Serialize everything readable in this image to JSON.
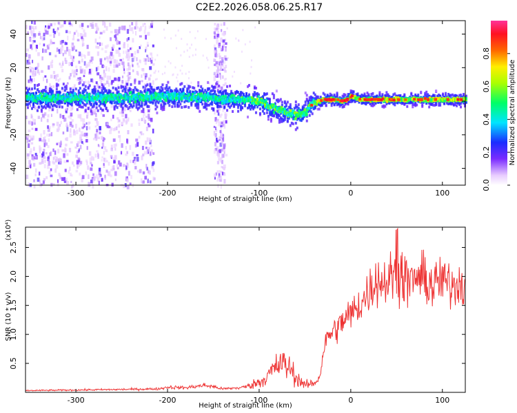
{
  "title": "C2E2.2026.058.06.25.R17",
  "chart_data": [
    {
      "type": "heatmap",
      "name": "spectrogram",
      "xlabel": "Height of straight line (km)",
      "ylabel": "Frequency (Hz)",
      "xlim": [
        -355,
        125
      ],
      "ylim": [
        -50,
        48
      ],
      "xticks": [
        -300,
        -200,
        -100,
        0,
        100
      ],
      "yticks": [
        -40,
        -20,
        0,
        20,
        40
      ],
      "colorbar": {
        "label": "Normalized spectral amplitude",
        "range": [
          0,
          1
        ],
        "ticks": [
          0.0,
          0.2,
          0.4,
          0.6,
          0.8
        ]
      },
      "ridge": {
        "x": [
          -355,
          -300,
          -250,
          -200,
          -150,
          -120,
          -100,
          -90,
          -80,
          -70,
          -60,
          -55,
          -50,
          -45,
          -40,
          -35,
          -30,
          -25,
          -20,
          -10,
          -5,
          0,
          5,
          10,
          20,
          40,
          60,
          80,
          100,
          125
        ],
        "y": [
          2,
          2,
          2,
          3,
          2,
          1,
          0,
          -3,
          -5,
          -7,
          -8,
          -8,
          -6,
          -3,
          -1,
          0,
          1,
          1,
          1,
          0,
          1,
          3,
          2,
          1,
          1,
          1,
          1,
          1,
          1,
          1
        ]
      },
      "noise_regions_x": [
        [
          -355,
          -215
        ],
        [
          -150,
          -137
        ]
      ]
    },
    {
      "type": "line",
      "name": "snr",
      "xlabel": "Height of straight line (km)",
      "ylabel": "SNR (10 * v/v)",
      "y_scale_label": "(x10⁴)",
      "xlim": [
        -355,
        125
      ],
      "ylim": [
        0,
        2.85
      ],
      "xticks": [
        -300,
        -200,
        -100,
        0,
        100
      ],
      "yticks": [
        0.5,
        1.0,
        1.5,
        2.0,
        2.5
      ],
      "color": "#ee3333",
      "x": [
        -355,
        -300,
        -250,
        -210,
        -200,
        -180,
        -160,
        -150,
        -140,
        -120,
        -110,
        -100,
        -95,
        -90,
        -85,
        -80,
        -75,
        -70,
        -65,
        -60,
        -55,
        -50,
        -45,
        -40,
        -35,
        -32,
        -30,
        -25,
        -20,
        -15,
        -10,
        -5,
        0,
        5,
        10,
        15,
        20,
        25,
        30,
        35,
        40,
        45,
        50,
        55,
        60,
        65,
        70,
        75,
        80,
        85,
        90,
        95,
        100,
        105,
        110,
        115,
        120,
        125
      ],
      "values": [
        0.03,
        0.04,
        0.05,
        0.06,
        0.09,
        0.08,
        0.12,
        0.1,
        0.06,
        0.08,
        0.12,
        0.18,
        0.22,
        0.3,
        0.38,
        0.45,
        0.5,
        0.45,
        0.4,
        0.25,
        0.2,
        0.12,
        0.14,
        0.16,
        0.25,
        0.4,
        0.75,
        0.95,
        1.05,
        1.1,
        1.2,
        1.28,
        1.35,
        1.42,
        1.52,
        1.62,
        1.75,
        1.88,
        1.95,
        1.9,
        1.92,
        2.0,
        1.95,
        2.05,
        1.95,
        1.9,
        1.95,
        2.0,
        1.92,
        1.88,
        1.85,
        1.9,
        1.95,
        1.88,
        1.85,
        1.92,
        1.9,
        1.85
      ]
    }
  ]
}
